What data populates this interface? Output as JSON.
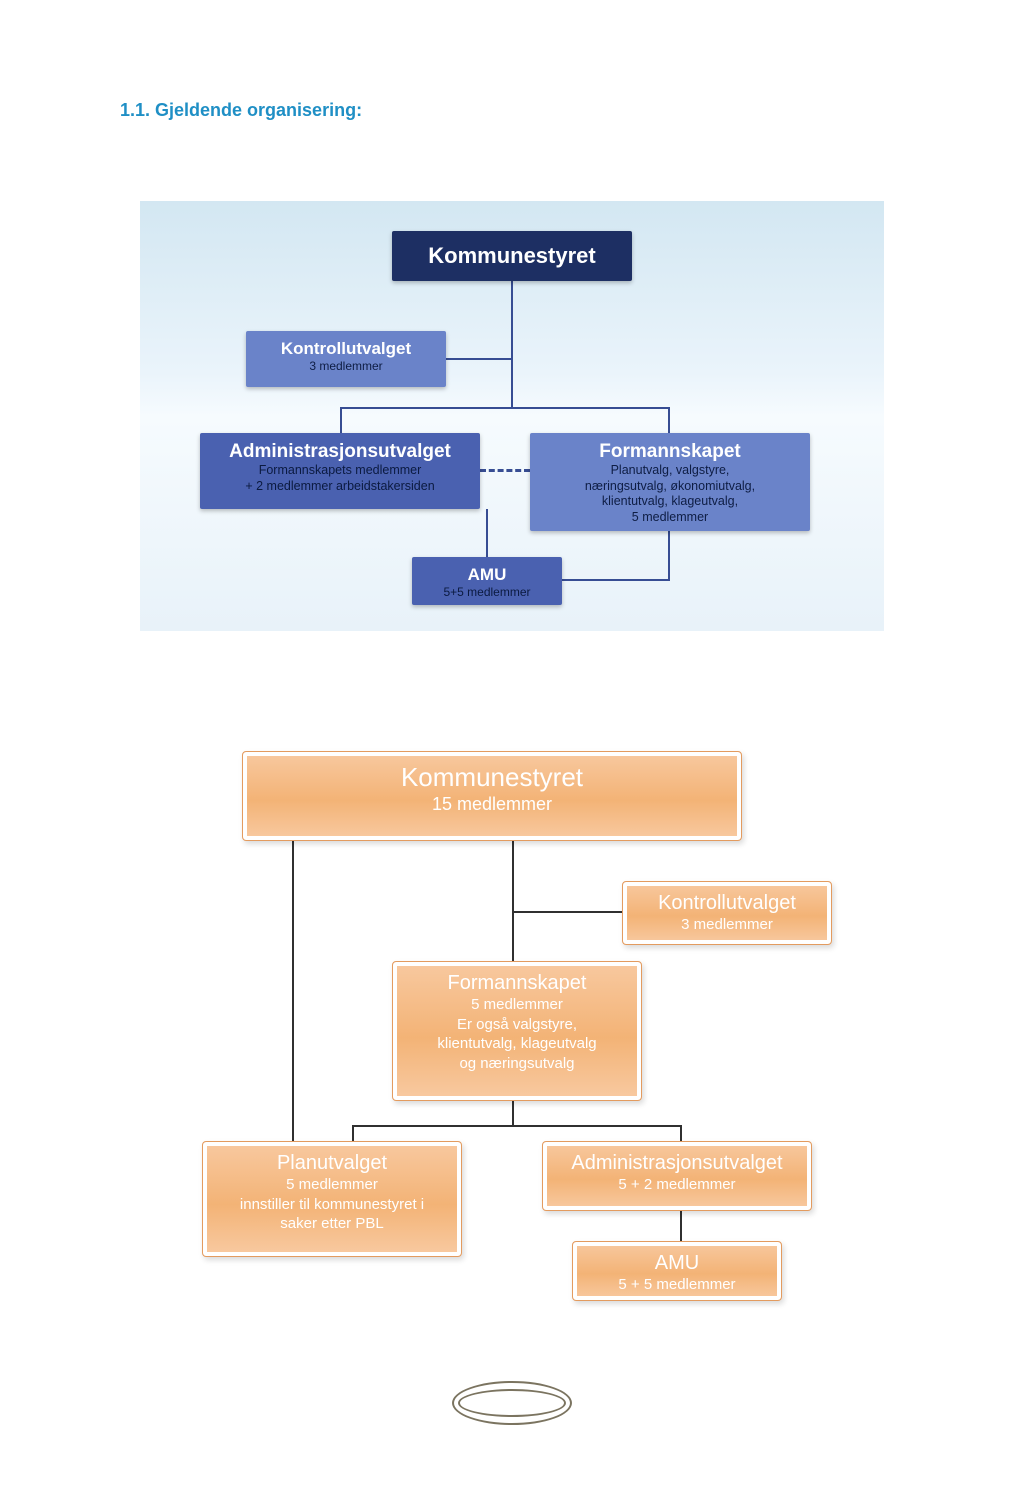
{
  "heading": "1.1. Gjeldende organisering:",
  "chart1": {
    "type": "flowchart",
    "background_gradient": [
      "#d3e7f2",
      "#eaf4fb",
      "#f6fbfe",
      "#e8f2f9"
    ],
    "line_color": "#374d93",
    "nodes": {
      "kommunestyret": {
        "title": "Kommunestyret",
        "sub": "",
        "bg": "#1d2f63",
        "title_color": "#ffffff"
      },
      "kontroll": {
        "title": "Kontrollutvalget",
        "sub": "3 medlemmer",
        "bg": "#6a83c9"
      },
      "admin": {
        "title": "Administrasjonsutvalget",
        "sub": "Formannskapets medlemmer\n+ 2 medlemmer arbeidstakersiden",
        "bg": "#4a61b0"
      },
      "formann": {
        "title": "Formannskapet",
        "sub": "Planutvalg, valgstyre,\nnæringsutvalg, økonomiutvalg,\nklientutvalg, klageutvalg,\n5 medlemmer",
        "bg": "#6a83c9"
      },
      "amu": {
        "title": "AMU",
        "sub": "5+5 medlemmer",
        "bg": "#4a61b0"
      }
    },
    "dashed_link": true
  },
  "chart2": {
    "type": "flowchart",
    "node_fill_gradient": [
      "#f8c9a0",
      "#f3b376",
      "#f8caa2"
    ],
    "node_border": "#e39b5f",
    "text_color": "#ffffff",
    "line_color": "#303030",
    "nodes": {
      "kommunestyret": {
        "title": "Kommunestyret",
        "sub": "15 medlemmer"
      },
      "kontroll": {
        "title": "Kontrollutvalget",
        "sub": "3 medlemmer"
      },
      "formann": {
        "title": "Formannskapet",
        "sub": "5 medlemmer\nEr også valgstyre,\nklientutvalg, klageutvalg\nog næringsutvalg"
      },
      "plan": {
        "title": "Planutvalget",
        "sub": "5 medlemmer\ninnstiller til kommunestyret i\nsaker etter PBL"
      },
      "admin": {
        "title": "Administrasjonsutvalget",
        "sub": "5 + 2 medlemmer"
      },
      "amu": {
        "title": "AMU",
        "sub": "5 + 5 medlemmer"
      }
    }
  },
  "colors": {
    "heading": "#1f8fc5",
    "page_bg": "#ffffff"
  },
  "typography": {
    "heading_fontsize": 18,
    "heading_fontweight": 700,
    "box_title_fontsize_large": 22,
    "box_title_fontsize": 18,
    "box_sub_fontsize": 12
  }
}
